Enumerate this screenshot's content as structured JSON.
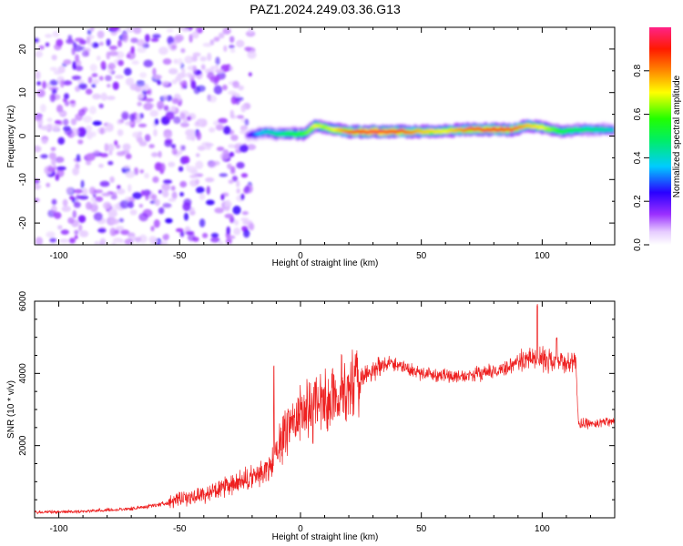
{
  "title": "PAZ1.2024.249.03.36.G13",
  "chart_data": [
    {
      "type": "heatmap",
      "xlabel": "Height of straight line (km)",
      "ylabel": "Frequency (Hz)",
      "xlim": [
        -110,
        130
      ],
      "ylim": [
        -25,
        25
      ],
      "xticks": [
        -100,
        -50,
        0,
        50,
        100
      ],
      "yticks": [
        -20,
        -10,
        0,
        10,
        20
      ],
      "colorbar": {
        "label": "Normalized spectral amplitude",
        "range": [
          0,
          1
        ],
        "ticks": [
          "0.0",
          "0.2",
          "0.4",
          "0.6",
          "0.8"
        ]
      },
      "noise_region": {
        "x_range": [
          -110,
          -20
        ],
        "y_range": [
          -25,
          25
        ],
        "amplitude": [
          0.05,
          0.2
        ]
      },
      "ridge": [
        {
          "x": -22,
          "y": 0,
          "a": 0.15
        },
        {
          "x": -18,
          "y": 0.5,
          "a": 0.35
        },
        {
          "x": -14,
          "y": 1,
          "a": 0.4
        },
        {
          "x": -10,
          "y": 0.5,
          "a": 0.45
        },
        {
          "x": -6,
          "y": 0.5,
          "a": 0.5
        },
        {
          "x": -2,
          "y": 0.5,
          "a": 0.55
        },
        {
          "x": 2,
          "y": 0.5,
          "a": 0.6
        },
        {
          "x": 6,
          "y": 2.5,
          "a": 0.7
        },
        {
          "x": 10,
          "y": 2,
          "a": 0.65
        },
        {
          "x": 14,
          "y": 1.5,
          "a": 0.7
        },
        {
          "x": 20,
          "y": 1,
          "a": 0.85
        },
        {
          "x": 30,
          "y": 1,
          "a": 0.95
        },
        {
          "x": 40,
          "y": 1,
          "a": 0.9
        },
        {
          "x": 50,
          "y": 1,
          "a": 0.75
        },
        {
          "x": 60,
          "y": 1.2,
          "a": 0.7
        },
        {
          "x": 70,
          "y": 1.5,
          "a": 0.85
        },
        {
          "x": 80,
          "y": 1.5,
          "a": 0.9
        },
        {
          "x": 88,
          "y": 1.5,
          "a": 0.85
        },
        {
          "x": 94,
          "y": 2.5,
          "a": 0.75
        },
        {
          "x": 100,
          "y": 2,
          "a": 0.7
        },
        {
          "x": 108,
          "y": 1,
          "a": 0.55
        },
        {
          "x": 116,
          "y": 1.5,
          "a": 0.5
        },
        {
          "x": 124,
          "y": 1.5,
          "a": 0.45
        },
        {
          "x": 130,
          "y": 1.5,
          "a": 0.4
        }
      ]
    },
    {
      "type": "line",
      "xlabel": "Height of straight line (km)",
      "ylabel": "SNR (10 * v/v)",
      "xlim": [
        -110,
        130
      ],
      "ylim": [
        0,
        6000
      ],
      "xticks": [
        -100,
        -50,
        0,
        50,
        100
      ],
      "yticks": [
        2000,
        4000,
        6000
      ],
      "series_color": "#ee2020",
      "trend": {
        "x": [
          -110,
          -90,
          -70,
          -60,
          -50,
          -40,
          -30,
          -20,
          -15,
          -12,
          -10,
          -5,
          0,
          5,
          10,
          15,
          20,
          25,
          30,
          35,
          40,
          50,
          60,
          65,
          70,
          75,
          80,
          85,
          90,
          95,
          100,
          105,
          110,
          114,
          115,
          120,
          125,
          130
        ],
        "y": [
          150,
          180,
          250,
          350,
          500,
          650,
          850,
          1100,
          1300,
          1400,
          1800,
          2600,
          2900,
          3000,
          3200,
          3300,
          3500,
          3850,
          4100,
          4300,
          4250,
          4000,
          3950,
          3900,
          3950,
          4000,
          4050,
          4150,
          4300,
          4450,
          4400,
          4350,
          4300,
          4250,
          2600,
          2600,
          2650,
          2700
        ]
      },
      "spikes": [
        {
          "x": -11,
          "y": 4300
        },
        {
          "x": 6,
          "y": 3800
        },
        {
          "x": 17,
          "y": 4600
        },
        {
          "x": 98,
          "y": 6000
        },
        {
          "x": 106,
          "y": 5000
        }
      ]
    }
  ],
  "colors": {
    "line": "#ee2020",
    "frame": "#000000"
  }
}
